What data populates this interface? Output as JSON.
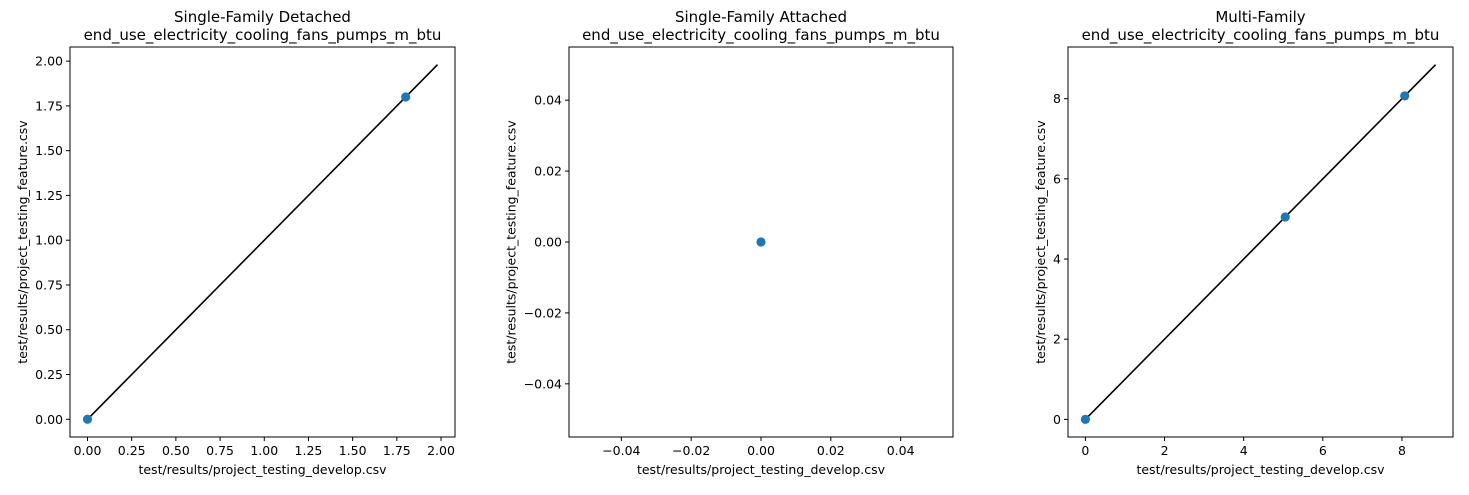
{
  "colors": {
    "point": "#1f77b4",
    "line": "#000000",
    "axes": "#000000",
    "background": "#ffffff"
  },
  "chart_data": [
    {
      "type": "scatter",
      "title": "Single-Family Detached",
      "subtitle": "end_use_electricity_cooling_fans_pumps_m_btu",
      "xlabel": "test/results/project_testing_develop.csv",
      "ylabel": "test/results/project_testing_feature.csv",
      "xlim": [
        -0.099,
        2.079
      ],
      "ylim": [
        -0.099,
        2.079
      ],
      "xticks": [
        0.0,
        0.25,
        0.5,
        0.75,
        1.0,
        1.25,
        1.5,
        1.75,
        2.0
      ],
      "xtick_labels": [
        "0.00",
        "0.25",
        "0.50",
        "0.75",
        "1.00",
        "1.25",
        "1.50",
        "1.75",
        "2.00"
      ],
      "yticks": [
        0.0,
        0.25,
        0.5,
        0.75,
        1.0,
        1.25,
        1.5,
        1.75,
        2.0
      ],
      "ytick_labels": [
        "0.00",
        "0.25",
        "0.50",
        "0.75",
        "1.00",
        "1.25",
        "1.50",
        "1.75",
        "2.00"
      ],
      "points": [
        {
          "x": 0.0,
          "y": 0.0
        },
        {
          "x": 1.8,
          "y": 1.8
        }
      ],
      "line": {
        "x": [
          0.0,
          1.98
        ],
        "y": [
          0.0,
          1.98
        ]
      },
      "grid": false
    },
    {
      "type": "scatter",
      "title": "Single-Family Attached",
      "subtitle": "end_use_electricity_cooling_fans_pumps_m_btu",
      "xlabel": "test/results/project_testing_develop.csv",
      "ylabel": "test/results/project_testing_feature.csv",
      "xlim": [
        -0.055,
        0.055
      ],
      "ylim": [
        -0.055,
        0.055
      ],
      "xticks": [
        -0.04,
        -0.02,
        0.0,
        0.02,
        0.04
      ],
      "xtick_labels": [
        "−0.04",
        "−0.02",
        "0.00",
        "0.02",
        "0.04"
      ],
      "yticks": [
        -0.04,
        -0.02,
        0.0,
        0.02,
        0.04
      ],
      "ytick_labels": [
        "−0.04",
        "−0.02",
        "0.00",
        "0.02",
        "0.04"
      ],
      "points": [
        {
          "x": 0.0,
          "y": 0.0
        }
      ],
      "line": null,
      "grid": false
    },
    {
      "type": "scatter",
      "title": "Multi-Family",
      "subtitle": "end_use_electricity_cooling_fans_pumps_m_btu",
      "xlabel": "test/results/project_testing_develop.csv",
      "ylabel": "test/results/project_testing_feature.csv",
      "xlim": [
        -0.44,
        9.29
      ],
      "ylim": [
        -0.44,
        9.29
      ],
      "xticks": [
        0,
        2,
        4,
        6,
        8
      ],
      "xtick_labels": [
        "0",
        "2",
        "4",
        "6",
        "8"
      ],
      "yticks": [
        0,
        2,
        4,
        6,
        8
      ],
      "ytick_labels": [
        "0",
        "2",
        "4",
        "6",
        "8"
      ],
      "points": [
        {
          "x": 0.0,
          "y": 0.0
        },
        {
          "x": 5.05,
          "y": 5.05
        },
        {
          "x": 8.07,
          "y": 8.07
        }
      ],
      "line": {
        "x": [
          0.0,
          8.85
        ],
        "y": [
          0.0,
          8.85
        ]
      },
      "grid": false
    }
  ]
}
